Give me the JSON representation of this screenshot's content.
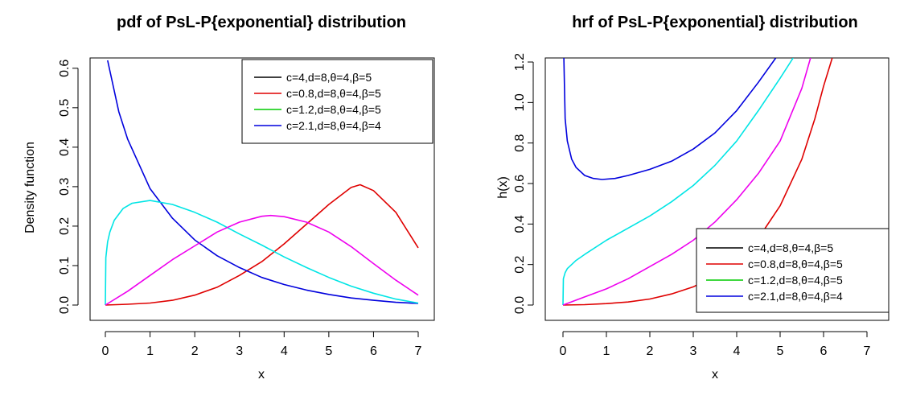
{
  "chart_data": [
    {
      "type": "line",
      "title": "pdf of PsL-P{exponential} distribution",
      "xlabel": "x",
      "ylabel": "Density function",
      "xlim": [
        0,
        7
      ],
      "ylim": [
        0,
        0.62
      ],
      "xticks": [
        "0",
        "1",
        "2",
        "3",
        "4",
        "5",
        "6",
        "7"
      ],
      "yticks": [
        "0.0",
        "0.1",
        "0.2",
        "0.3",
        "0.4",
        "0.5",
        "0.6"
      ],
      "legend_position": "top-right",
      "legend": [
        {
          "label": "c=4,d=8,θ=4,β=5",
          "color": "#000000"
        },
        {
          "label": "c=0.8,d=8,θ=4,β=5",
          "color": "#df0000"
        },
        {
          "label": "c=1.2,d=8,θ=4,β=5",
          "color": "#00cc00"
        },
        {
          "label": "c=2.1,d=8,θ=4,β=4",
          "color": "#0000dd"
        }
      ],
      "series": [
        {
          "color": "#df0000",
          "x": [
            0,
            0.5,
            1,
            1.5,
            2,
            2.5,
            3,
            3.5,
            4,
            4.5,
            5,
            5.5,
            5.7,
            6,
            6.5,
            7
          ],
          "y": [
            0,
            0.002,
            0.005,
            0.012,
            0.025,
            0.045,
            0.075,
            0.11,
            0.155,
            0.205,
            0.255,
            0.298,
            0.305,
            0.29,
            0.235,
            0.145
          ]
        },
        {
          "color": "#0000dd",
          "x": [
            0.05,
            0.3,
            0.5,
            1,
            1.5,
            2,
            2.5,
            3,
            3.5,
            4,
            4.5,
            5,
            5.5,
            6,
            6.5,
            7
          ],
          "y": [
            0.62,
            0.49,
            0.42,
            0.295,
            0.22,
            0.165,
            0.125,
            0.095,
            0.07,
            0.052,
            0.038,
            0.027,
            0.018,
            0.012,
            0.007,
            0.004
          ]
        },
        {
          "color": "#00e5e5",
          "x": [
            0,
            0.01,
            0.05,
            0.1,
            0.2,
            0.4,
            0.6,
            1,
            1.5,
            2,
            2.5,
            3,
            3.5,
            4,
            4.5,
            5,
            5.5,
            6,
            6.5,
            7
          ],
          "y": [
            0,
            0.12,
            0.16,
            0.185,
            0.215,
            0.245,
            0.258,
            0.265,
            0.255,
            0.235,
            0.21,
            0.18,
            0.152,
            0.122,
            0.095,
            0.07,
            0.048,
            0.03,
            0.015,
            0.005
          ]
        },
        {
          "color": "#ee00ee",
          "x": [
            0,
            0.5,
            1,
            1.5,
            2,
            2.5,
            3,
            3.5,
            3.7,
            4,
            4.5,
            5,
            5.5,
            6,
            6.5,
            7
          ],
          "y": [
            0,
            0.035,
            0.075,
            0.115,
            0.15,
            0.185,
            0.21,
            0.225,
            0.227,
            0.224,
            0.21,
            0.185,
            0.148,
            0.105,
            0.063,
            0.025
          ]
        }
      ]
    },
    {
      "type": "line",
      "title": "hrf of PsL-P{exponential} distribution",
      "xlabel": "x",
      "ylabel": "h(x)",
      "xlim": [
        0,
        7
      ],
      "ylim": [
        0,
        1.22
      ],
      "xticks": [
        "0",
        "1",
        "2",
        "3",
        "4",
        "5",
        "6",
        "7"
      ],
      "yticks": [
        "0.0",
        "0.2",
        "0.4",
        "0.6",
        "0.8",
        "1.0",
        "1.2"
      ],
      "legend_position": "bottom-right",
      "legend": [
        {
          "label": "c=4,d=8,θ=4,β=5",
          "color": "#000000"
        },
        {
          "label": "c=0.8,d=8,θ=4,β=5",
          "color": "#df0000"
        },
        {
          "label": "c=1.2,d=8,θ=4,β=5",
          "color": "#00cc00"
        },
        {
          "label": "c=2.1,d=8,θ=4,β=4",
          "color": "#0000dd"
        }
      ],
      "series": [
        {
          "color": "#df0000",
          "x": [
            0,
            0.5,
            1,
            1.5,
            2,
            2.5,
            3,
            3.5,
            4,
            4.5,
            5,
            5.5,
            5.8,
            6,
            6.2
          ],
          "y": [
            0,
            0.002,
            0.007,
            0.015,
            0.03,
            0.055,
            0.09,
            0.145,
            0.22,
            0.33,
            0.49,
            0.72,
            0.92,
            1.08,
            1.22
          ]
        },
        {
          "color": "#0000dd",
          "x": [
            0.02,
            0.05,
            0.1,
            0.2,
            0.3,
            0.5,
            0.7,
            0.9,
            1.2,
            1.5,
            2,
            2.5,
            3,
            3.5,
            4,
            4.5,
            4.9
          ],
          "y": [
            1.22,
            0.92,
            0.81,
            0.72,
            0.68,
            0.64,
            0.625,
            0.62,
            0.625,
            0.64,
            0.67,
            0.71,
            0.77,
            0.85,
            0.96,
            1.1,
            1.22
          ]
        },
        {
          "color": "#00e5e5",
          "x": [
            0,
            0.01,
            0.05,
            0.1,
            0.2,
            0.3,
            0.5,
            1,
            1.5,
            2,
            2.5,
            3,
            3.5,
            4,
            4.5,
            5,
            5.3
          ],
          "y": [
            0,
            0.13,
            0.16,
            0.18,
            0.2,
            0.22,
            0.25,
            0.32,
            0.38,
            0.44,
            0.51,
            0.59,
            0.69,
            0.81,
            0.96,
            1.12,
            1.22
          ]
        },
        {
          "color": "#ee00ee",
          "x": [
            0,
            0.5,
            1,
            1.5,
            2,
            2.5,
            3,
            3.5,
            4,
            4.5,
            5,
            5.5,
            5.7
          ],
          "y": [
            0,
            0.04,
            0.08,
            0.13,
            0.19,
            0.25,
            0.32,
            0.41,
            0.52,
            0.65,
            0.81,
            1.07,
            1.22
          ]
        }
      ]
    }
  ]
}
